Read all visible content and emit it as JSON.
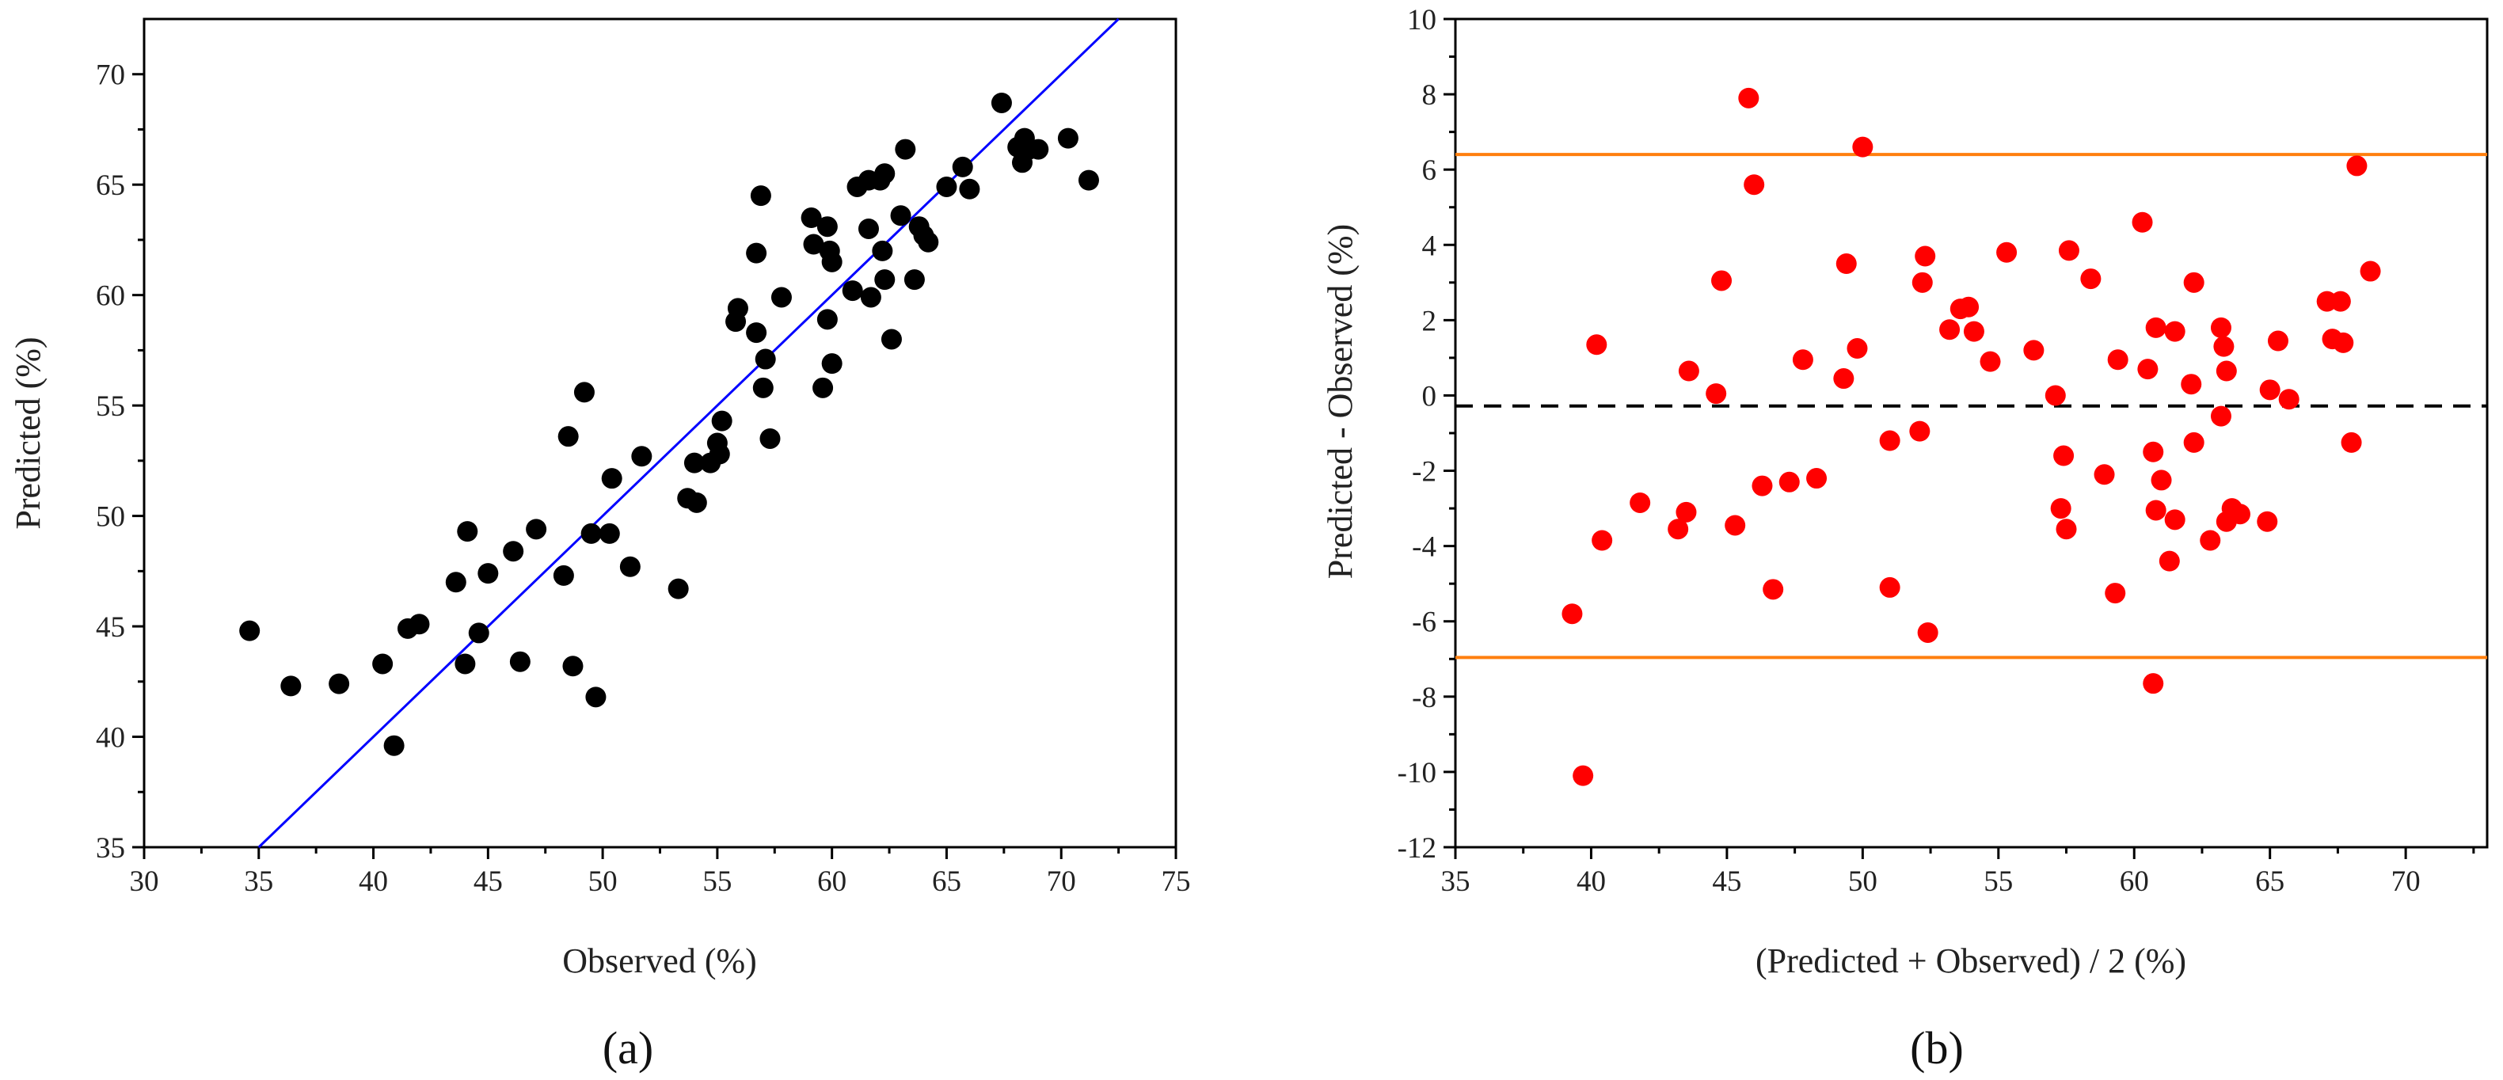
{
  "chart_data": [
    {
      "type": "scatter",
      "panel_label": "(a)",
      "xlabel": "Observed (%)",
      "ylabel": "Predicted (%)",
      "xlim": [
        30,
        75
      ],
      "ylim": [
        35,
        72.5
      ],
      "xticks": [
        30,
        35,
        40,
        45,
        50,
        55,
        60,
        65,
        70,
        75
      ],
      "yticks": [
        35,
        40,
        45,
        50,
        55,
        60,
        65,
        70
      ],
      "marker_color": "#000000",
      "line_color": "#0000ff",
      "reference_line": {
        "type": "identity",
        "label": "y = x"
      },
      "points": [
        [
          34.6,
          44.8
        ],
        [
          36.4,
          42.3
        ],
        [
          38.5,
          42.4
        ],
        [
          40.4,
          43.3
        ],
        [
          40.9,
          39.6
        ],
        [
          41.5,
          44.9
        ],
        [
          42.0,
          45.1
        ],
        [
          43.6,
          47.0
        ],
        [
          44.0,
          43.3
        ],
        [
          44.1,
          49.3
        ],
        [
          44.6,
          44.7
        ],
        [
          45.0,
          47.4
        ],
        [
          46.1,
          48.4
        ],
        [
          46.4,
          43.4
        ],
        [
          47.1,
          49.4
        ],
        [
          48.3,
          47.3
        ],
        [
          48.5,
          53.6
        ],
        [
          48.7,
          43.2
        ],
        [
          49.2,
          55.6
        ],
        [
          49.5,
          49.2
        ],
        [
          49.7,
          41.8
        ],
        [
          50.3,
          49.2
        ],
        [
          50.4,
          51.7
        ],
        [
          51.2,
          47.7
        ],
        [
          51.7,
          52.7
        ],
        [
          53.3,
          46.7
        ],
        [
          53.7,
          50.8
        ],
        [
          54.0,
          52.4
        ],
        [
          54.1,
          50.6
        ],
        [
          54.7,
          52.4
        ],
        [
          55.0,
          53.3
        ],
        [
          55.1,
          52.8
        ],
        [
          55.2,
          54.3
        ],
        [
          55.8,
          58.8
        ],
        [
          55.9,
          59.4
        ],
        [
          56.7,
          58.3
        ],
        [
          56.7,
          61.9
        ],
        [
          56.9,
          64.5
        ],
        [
          57.0,
          55.8
        ],
        [
          57.1,
          57.1
        ],
        [
          57.3,
          53.5
        ],
        [
          57.8,
          59.9
        ],
        [
          59.1,
          63.5
        ],
        [
          59.2,
          62.3
        ],
        [
          59.6,
          55.8
        ],
        [
          59.8,
          58.9
        ],
        [
          59.8,
          63.1
        ],
        [
          59.9,
          62.0
        ],
        [
          60.0,
          56.9
        ],
        [
          60.0,
          61.5
        ],
        [
          60.9,
          60.2
        ],
        [
          61.1,
          64.9
        ],
        [
          61.6,
          65.2
        ],
        [
          61.6,
          63.0
        ],
        [
          61.7,
          59.9
        ],
        [
          62.1,
          65.2
        ],
        [
          62.2,
          62.0
        ],
        [
          62.3,
          65.5
        ],
        [
          62.3,
          60.7
        ],
        [
          62.6,
          58.0
        ],
        [
          63.0,
          63.6
        ],
        [
          63.2,
          66.6
        ],
        [
          63.6,
          60.7
        ],
        [
          63.8,
          63.1
        ],
        [
          64.0,
          62.7
        ],
        [
          64.2,
          62.4
        ],
        [
          65.0,
          64.9
        ],
        [
          65.7,
          65.8
        ],
        [
          66.0,
          64.8
        ],
        [
          67.4,
          68.7
        ],
        [
          68.1,
          66.7
        ],
        [
          68.3,
          66.0
        ],
        [
          68.4,
          67.1
        ],
        [
          68.6,
          66.6
        ],
        [
          69.0,
          66.6
        ],
        [
          70.3,
          67.1
        ],
        [
          71.2,
          65.2
        ]
      ]
    },
    {
      "type": "scatter",
      "panel_label": "(b)",
      "xlabel": "(Predicted + Observed) / 2 (%)",
      "ylabel": "Predicted - Observed (%)",
      "xlim": [
        35,
        73
      ],
      "ylim": [
        -12,
        10
      ],
      "xticks": [
        35,
        40,
        45,
        50,
        55,
        60,
        65,
        70
      ],
      "yticks": [
        -12,
        -10,
        -8,
        -6,
        -4,
        -2,
        0,
        2,
        4,
        6,
        8,
        10
      ],
      "marker_color": "#ff0000",
      "mean_difference": -0.28,
      "mean_line_color": "#000000",
      "upper_limit_of_agreement": 6.4,
      "lower_limit_of_agreement": -6.96,
      "limit_line_color": "#ff7f0e",
      "points": [
        [
          39.3,
          -5.8
        ],
        [
          39.7,
          -10.1
        ],
        [
          40.2,
          1.35
        ],
        [
          40.4,
          -3.85
        ],
        [
          41.8,
          -2.85
        ],
        [
          43.2,
          -3.55
        ],
        [
          43.5,
          -3.1
        ],
        [
          43.6,
          0.65
        ],
        [
          44.6,
          0.05
        ],
        [
          44.8,
          3.05
        ],
        [
          45.3,
          -3.45
        ],
        [
          45.8,
          7.9
        ],
        [
          46.0,
          5.6
        ],
        [
          46.3,
          -2.4
        ],
        [
          46.7,
          -5.15
        ],
        [
          47.3,
          -2.3
        ],
        [
          47.8,
          0.95
        ],
        [
          48.3,
          -2.2
        ],
        [
          49.3,
          0.45
        ],
        [
          49.4,
          3.5
        ],
        [
          49.8,
          1.25
        ],
        [
          50.0,
          6.6
        ],
        [
          51.0,
          -1.2
        ],
        [
          51.0,
          -5.1
        ],
        [
          52.1,
          -0.95
        ],
        [
          52.2,
          3.0
        ],
        [
          52.3,
          3.7
        ],
        [
          52.4,
          -6.3
        ],
        [
          53.2,
          1.75
        ],
        [
          53.6,
          2.3
        ],
        [
          53.9,
          2.35
        ],
        [
          54.1,
          1.7
        ],
        [
          54.7,
          0.9
        ],
        [
          55.3,
          3.8
        ],
        [
          56.3,
          1.2
        ],
        [
          57.1,
          0.0
        ],
        [
          57.3,
          -3.0
        ],
        [
          57.4,
          -1.6
        ],
        [
          57.5,
          -3.55
        ],
        [
          57.6,
          3.85
        ],
        [
          58.4,
          3.1
        ],
        [
          58.9,
          -2.1
        ],
        [
          59.3,
          -5.25
        ],
        [
          59.4,
          0.95
        ],
        [
          60.3,
          4.6
        ],
        [
          60.5,
          0.7
        ],
        [
          60.7,
          -7.65
        ],
        [
          60.7,
          -1.5
        ],
        [
          60.8,
          -3.05
        ],
        [
          60.8,
          1.8
        ],
        [
          61.0,
          -2.25
        ],
        [
          61.3,
          -4.4
        ],
        [
          61.5,
          1.7
        ],
        [
          61.5,
          -3.3
        ],
        [
          62.1,
          0.3
        ],
        [
          62.2,
          3.0
        ],
        [
          62.2,
          -1.25
        ],
        [
          62.8,
          -3.85
        ],
        [
          63.2,
          -0.55
        ],
        [
          63.2,
          1.8
        ],
        [
          63.3,
          1.3
        ],
        [
          63.4,
          0.65
        ],
        [
          63.4,
          -3.35
        ],
        [
          63.6,
          -3.0
        ],
        [
          63.9,
          -3.15
        ],
        [
          64.9,
          -3.35
        ],
        [
          65.0,
          0.15
        ],
        [
          65.3,
          1.45
        ],
        [
          65.7,
          -0.1
        ],
        [
          67.1,
          2.5
        ],
        [
          67.3,
          1.5
        ],
        [
          67.6,
          2.5
        ],
        [
          67.7,
          1.4
        ],
        [
          68.0,
          -1.25
        ],
        [
          68.2,
          6.1
        ],
        [
          68.7,
          3.3
        ]
      ]
    }
  ]
}
